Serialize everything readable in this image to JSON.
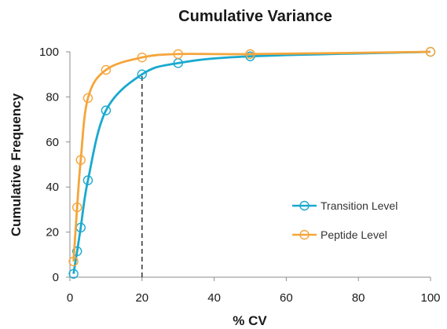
{
  "chart_data": {
    "type": "scatter",
    "title": "Cumulative Variance",
    "xlabel": "% CV",
    "ylabel": "Cumulative Frequency",
    "xlim": [
      0,
      100
    ],
    "ylim": [
      0,
      100
    ],
    "x_ticks": [
      "0",
      "20",
      "40",
      "60",
      "80",
      "100"
    ],
    "y_ticks": [
      "0",
      "20",
      "40",
      "60",
      "80",
      "100"
    ],
    "grid": false,
    "legend_position": "bottom-right",
    "reference_line": {
      "x": 20,
      "style": "dashed"
    },
    "series": [
      {
        "name": "Transition Level",
        "color": "#1aa9cf",
        "marker": "open-circle",
        "line": "smooth",
        "x": [
          1,
          2,
          3,
          5,
          10,
          20,
          30,
          50,
          100
        ],
        "y": [
          1.5,
          11.5,
          22,
          43,
          74,
          90,
          95,
          98,
          100
        ]
      },
      {
        "name": "Peptide Level",
        "color": "#f5a53b",
        "marker": "open-circle",
        "line": "smooth",
        "x": [
          1,
          2,
          3,
          5,
          10,
          20,
          30,
          50,
          100
        ],
        "y": [
          7,
          31,
          52,
          79.5,
          92,
          97.5,
          99,
          99,
          100
        ]
      }
    ]
  }
}
